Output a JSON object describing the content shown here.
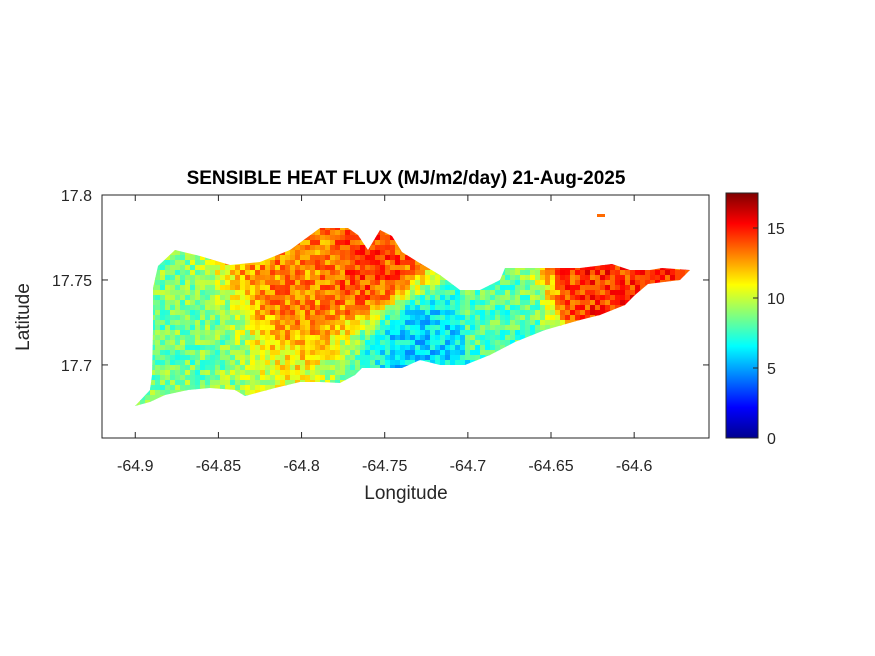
{
  "chart_data": {
    "type": "heatmap",
    "title": "SENSIBLE HEAT FLUX (MJ/m2/day) 21-Aug-2025",
    "xlabel": "Longitude",
    "ylabel": "Latitude",
    "xlim": [
      -64.92,
      -64.555
    ],
    "ylim": [
      17.657,
      17.8
    ],
    "x_ticks": [
      -64.9,
      -64.85,
      -64.8,
      -64.75,
      -64.7,
      -64.65,
      -64.6
    ],
    "x_tick_labels": [
      "-64.9",
      "-64.85",
      "-64.8",
      "-64.75",
      "-64.7",
      "-64.65",
      "-64.6"
    ],
    "y_ticks": [
      17.7,
      17.75,
      17.8
    ],
    "y_tick_labels": [
      "17.7",
      "17.75",
      "17.8"
    ],
    "colorbar": {
      "colormap": "jet",
      "clim": [
        0,
        17.5
      ],
      "ticks": [
        0,
        5,
        10,
        15
      ],
      "tick_labels": [
        "0",
        "5",
        "10",
        "15"
      ]
    },
    "grid": false,
    "region_summary": [
      {
        "lon": -64.88,
        "lat": 17.72,
        "value": 8.5
      },
      {
        "lon": -64.8,
        "lat": 17.76,
        "value": 13
      },
      {
        "lon": -64.76,
        "lat": 17.76,
        "value": 14
      },
      {
        "lon": -64.73,
        "lat": 17.715,
        "value": 6
      },
      {
        "lon": -64.68,
        "lat": 17.725,
        "value": 8
      },
      {
        "lon": -64.62,
        "lat": 17.745,
        "value": 14.5
      }
    ]
  }
}
